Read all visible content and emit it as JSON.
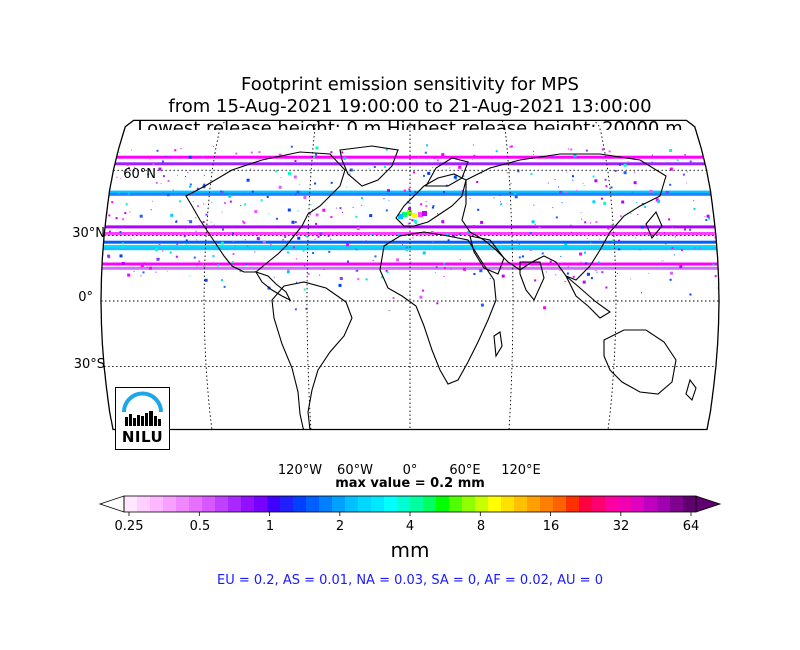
{
  "title": {
    "line1": "Footprint emission sensitivity for MPS",
    "line2": "from 15-Aug-2021 19:00:00 to 21-Aug-2021 13:00:00",
    "line3": "Lowest release height: 0 m      Highest release height: 20000 m"
  },
  "map": {
    "projection": "Robinson",
    "latitude_labels": [
      "60°N",
      "30°N",
      "0°",
      "30°S"
    ],
    "longitude_labels": [
      "120°W",
      "60°W",
      "0°",
      "60°E",
      "120°E"
    ],
    "max_value_text": "max value = 0.2 mm"
  },
  "colorbar": {
    "tick_labels": [
      "0.25",
      "0.5",
      "1",
      "2",
      "4",
      "8",
      "16",
      "32",
      "64"
    ],
    "units": "mm",
    "colors": [
      "#ffe8ff",
      "#ffd0ff",
      "#ffb8ff",
      "#f7a0ff",
      "#ef88ff",
      "#e770ff",
      "#d858ff",
      "#c040ff",
      "#a828ff",
      "#9010ff",
      "#7800ff",
      "#4000ff",
      "#2020ff",
      "#0040ff",
      "#0060ff",
      "#0080ff",
      "#00a0ff",
      "#00c0ff",
      "#00d8ff",
      "#00e8ff",
      "#00ffff",
      "#00ffd0",
      "#00ffa0",
      "#00ff60",
      "#00ff00",
      "#50ff00",
      "#90ff00",
      "#c8ff00",
      "#ffff00",
      "#ffe000",
      "#ffc000",
      "#ffa000",
      "#ff8000",
      "#ff6000",
      "#ff3000",
      "#ff0040",
      "#ff0070",
      "#ff00a0",
      "#f000b0",
      "#e000c0",
      "#c000c0",
      "#a000b0",
      "#800090",
      "#600070"
    ]
  },
  "summary": "EU = 0.2,  AS = 0.01,  NA = 0.03,  SA = 0,  AF = 0.02,  AU = 0",
  "logo": {
    "text": "NILU"
  },
  "bands": [
    {
      "lat": 66,
      "color": "#ff00ff"
    },
    {
      "lat": 63,
      "color": "#a020ff"
    },
    {
      "lat": 50,
      "color": "#00c8ff"
    },
    {
      "lat": 49,
      "color": "#2080ff"
    },
    {
      "lat": 34,
      "color": "#b000ff"
    },
    {
      "lat": 31,
      "color": "#ff40ff"
    },
    {
      "lat": 27,
      "color": "#0060ff"
    },
    {
      "lat": 25,
      "color": "#00e0ff"
    },
    {
      "lat": 24,
      "color": "#20c0ff"
    },
    {
      "lat": 17,
      "color": "#ff00ff"
    },
    {
      "lat": 15,
      "color": "#d070ff"
    }
  ]
}
